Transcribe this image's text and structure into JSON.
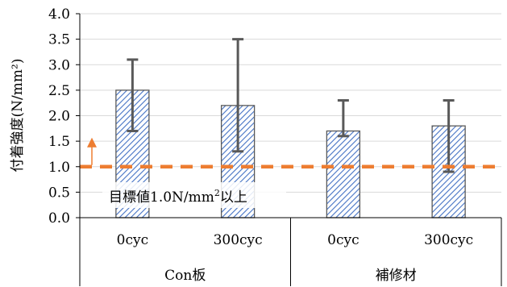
{
  "chart_data": {
    "type": "bar",
    "title": "",
    "ylabel": "付着強度(N/mm²)",
    "ylim": [
      0,
      4.0
    ],
    "yticks": [
      "0.0",
      "0.5",
      "1.0",
      "1.5",
      "2.0",
      "2.5",
      "3.0",
      "3.5",
      "4.0"
    ],
    "grid": true,
    "categories": [
      "0cyc",
      "300cyc",
      "0cyc",
      "300cyc"
    ],
    "groups": [
      {
        "label": "Con板",
        "span": [
          0,
          1
        ]
      },
      {
        "label": "補修材",
        "span": [
          2,
          3
        ]
      }
    ],
    "values": [
      2.5,
      2.2,
      1.7,
      1.8
    ],
    "error_bars": [
      {
        "low": 1.7,
        "high": 3.1
      },
      {
        "low": 1.3,
        "high": 3.5
      },
      {
        "low": 1.6,
        "high": 2.3
      },
      {
        "low": 0.9,
        "high": 2.3
      }
    ],
    "reference_line": {
      "value": 1.0,
      "style": "dashed"
    },
    "annotation": {
      "text_main": "目標値1.0N/mm",
      "superscript": "2",
      "text_tail": "以上",
      "arrow": "up"
    },
    "colors": {
      "bar_fill": "#ffffff",
      "bar_hatch": "#4472c4",
      "bar_border": "#595959",
      "error_bar": "#595959",
      "reference_line": "#ed7d31",
      "arrow": "#ed7d31",
      "grid": "#d9d9d9",
      "axis": "#000000"
    }
  }
}
